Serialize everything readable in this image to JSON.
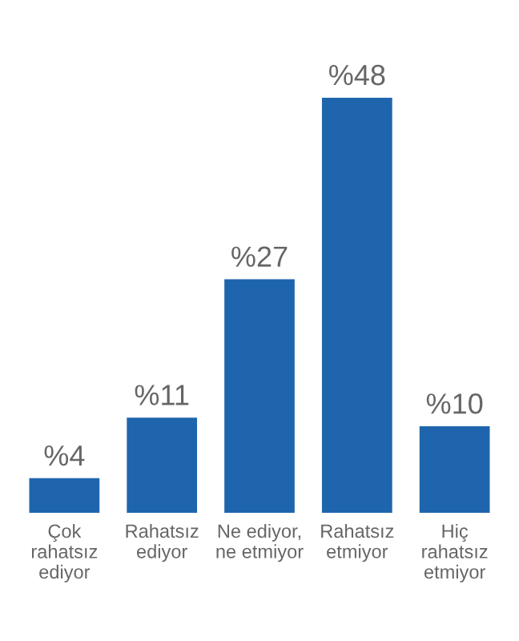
{
  "chart_data": {
    "type": "bar",
    "categories": [
      "Çok\nrahatsız\nediyor",
      "Rahatsız\nediyor",
      "Ne ediyor,\nne etmiyor",
      "Rahatsız\netmiyor",
      "Hiç\nrahatsız\netmiyor"
    ],
    "values": [
      4,
      11,
      27,
      48,
      10
    ],
    "value_labels": [
      "%4",
      "%11",
      "%27",
      "%48",
      "%10"
    ],
    "color": "#1f65ad"
  }
}
